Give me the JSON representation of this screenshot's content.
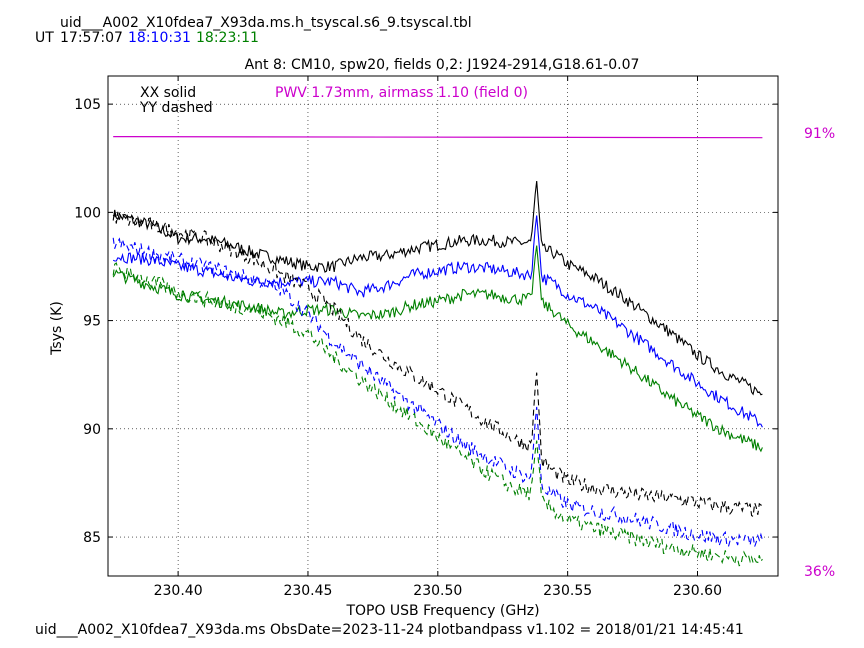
{
  "header": {
    "filename": "uid___A002_X10fdea7_X93da.ms.h_tsyscal.s6_9.tsyscal.tbl",
    "ut_label": "UT",
    "times": [
      {
        "text": "17:57:07",
        "color": "#000000"
      },
      {
        "text": "18:10:31",
        "color": "#0000ff"
      },
      {
        "text": "18:23:11",
        "color": "#008000"
      }
    ]
  },
  "footer": {
    "text": "uid___A002_X10fdea7_X93da.ms  ObsDate=2023-11-24   plotbandpass v1.102 = 2018/01/21 14:45:41"
  },
  "chart_data": {
    "type": "line",
    "title": "Ant 8: CM10,  spw20,  fields 0,2: J1924-2914,G18.61-0.07",
    "xlabel": "TOPO USB Frequency (GHz)",
    "ylabel": "Tsys (K)",
    "xlim": [
      230.373,
      230.631
    ],
    "ylim": [
      83.2,
      106.3
    ],
    "x_ticks": [
      "230.40",
      "230.45",
      "230.50",
      "230.55",
      "230.60"
    ],
    "x_tick_values": [
      230.4,
      230.45,
      230.5,
      230.55,
      230.6
    ],
    "y_ticks": [
      "85",
      "90",
      "95",
      "100",
      "105"
    ],
    "y_tick_values": [
      85,
      90,
      95,
      100,
      105
    ],
    "grid": true,
    "legend": {
      "solid": "XX solid",
      "dashed": "YY dashed"
    },
    "annotation": {
      "text": "PWV 1.73mm, airmass 1.10 (field 0)",
      "color": "#cc00cc"
    },
    "right_axis": {
      "top": "91%",
      "bottom": "36%",
      "color": "#cc00cc"
    },
    "transmission": {
      "color": "#cc00cc",
      "x": [
        230.375,
        230.625
      ],
      "y": [
        103.5,
        103.45
      ]
    },
    "series": [
      {
        "color": "#000000",
        "style": "solid",
        "x": [
          230.375,
          230.39,
          230.4,
          230.41,
          230.42,
          230.43,
          230.44,
          230.45,
          230.46,
          230.47,
          230.48,
          230.49,
          230.5,
          230.51,
          230.52,
          230.53,
          230.536,
          230.538,
          230.54,
          230.545,
          230.55,
          230.56,
          230.57,
          230.58,
          230.59,
          230.6,
          230.61,
          230.625
        ],
        "y": [
          99.9,
          99.4,
          98.8,
          98.8,
          98.5,
          98.1,
          97.8,
          97.5,
          97.5,
          97.9,
          98.0,
          98.3,
          98.5,
          98.7,
          98.7,
          98.6,
          98.6,
          101.6,
          98.3,
          98.1,
          97.6,
          97.0,
          96.2,
          95.3,
          94.4,
          93.4,
          92.6,
          91.6
        ]
      },
      {
        "color": "#0000ff",
        "style": "solid",
        "x": [
          230.375,
          230.39,
          230.4,
          230.41,
          230.42,
          230.43,
          230.44,
          230.45,
          230.46,
          230.47,
          230.48,
          230.49,
          230.5,
          230.51,
          230.52,
          230.53,
          230.536,
          230.538,
          230.54,
          230.545,
          230.55,
          230.56,
          230.57,
          230.58,
          230.59,
          230.6,
          230.61,
          230.625
        ],
        "y": [
          98.0,
          97.8,
          97.5,
          97.3,
          97.0,
          96.8,
          96.8,
          96.8,
          96.8,
          96.3,
          96.6,
          97.1,
          97.3,
          97.5,
          97.4,
          97.2,
          97.1,
          100.0,
          97.0,
          96.7,
          96.2,
          95.6,
          94.8,
          93.9,
          93.0,
          92.1,
          91.3,
          90.2
        ]
      },
      {
        "color": "#008000",
        "style": "solid",
        "x": [
          230.375,
          230.39,
          230.4,
          230.41,
          230.42,
          230.43,
          230.44,
          230.45,
          230.46,
          230.47,
          230.48,
          230.49,
          230.5,
          230.51,
          230.52,
          230.53,
          230.536,
          230.538,
          230.54,
          230.545,
          230.55,
          230.56,
          230.57,
          230.58,
          230.59,
          230.6,
          230.61,
          230.625
        ],
        "y": [
          97.2,
          96.6,
          96.2,
          96.0,
          95.8,
          95.6,
          95.3,
          95.5,
          95.5,
          95.2,
          95.3,
          95.7,
          95.9,
          96.2,
          96.2,
          96.0,
          96.0,
          98.6,
          95.8,
          95.4,
          94.8,
          94.0,
          93.2,
          92.3,
          91.4,
          90.6,
          89.9,
          89.1
        ]
      },
      {
        "color": "#000000",
        "style": "dashed",
        "x": [
          230.375,
          230.39,
          230.4,
          230.41,
          230.42,
          230.43,
          230.44,
          230.45,
          230.46,
          230.47,
          230.48,
          230.49,
          230.5,
          230.51,
          230.52,
          230.53,
          230.536,
          230.538,
          230.54,
          230.545,
          230.55,
          230.56,
          230.57,
          230.58,
          230.59,
          230.6,
          230.61,
          230.625
        ],
        "y": [
          99.8,
          99.4,
          99.1,
          98.8,
          98.3,
          97.8,
          97.1,
          96.5,
          95.5,
          94.2,
          93.3,
          92.5,
          91.8,
          91.0,
          90.2,
          89.5,
          89.2,
          92.8,
          88.5,
          88.0,
          87.6,
          87.3,
          87.1,
          86.9,
          86.8,
          86.6,
          86.4,
          86.2
        ]
      },
      {
        "color": "#0000ff",
        "style": "dashed",
        "x": [
          230.375,
          230.39,
          230.4,
          230.41,
          230.42,
          230.43,
          230.44,
          230.45,
          230.46,
          230.47,
          230.48,
          230.49,
          230.5,
          230.51,
          230.52,
          230.53,
          230.536,
          230.538,
          230.54,
          230.545,
          230.55,
          230.56,
          230.57,
          230.58,
          230.59,
          230.6,
          230.61,
          230.625
        ],
        "y": [
          98.6,
          98.1,
          97.8,
          97.5,
          97.2,
          96.9,
          96.4,
          95.3,
          94.0,
          93.0,
          92.0,
          91.1,
          90.2,
          89.3,
          88.6,
          88.0,
          87.7,
          91.2,
          87.3,
          86.9,
          86.5,
          86.2,
          86.0,
          85.7,
          85.4,
          85.1,
          84.9,
          84.8
        ]
      },
      {
        "color": "#008000",
        "style": "dashed",
        "x": [
          230.375,
          230.39,
          230.4,
          230.41,
          230.42,
          230.43,
          230.44,
          230.45,
          230.46,
          230.47,
          230.48,
          230.49,
          230.5,
          230.51,
          230.52,
          230.53,
          230.536,
          230.538,
          230.54,
          230.545,
          230.55,
          230.56,
          230.57,
          230.58,
          230.59,
          230.6,
          230.61,
          230.625
        ],
        "y": [
          97.4,
          96.8,
          96.3,
          96.0,
          95.7,
          95.5,
          95.0,
          94.4,
          93.3,
          92.3,
          91.4,
          90.5,
          89.6,
          88.7,
          87.9,
          87.2,
          87.0,
          89.6,
          86.6,
          86.2,
          85.8,
          85.4,
          85.1,
          84.8,
          84.5,
          84.3,
          84.1,
          83.9
        ]
      }
    ]
  }
}
